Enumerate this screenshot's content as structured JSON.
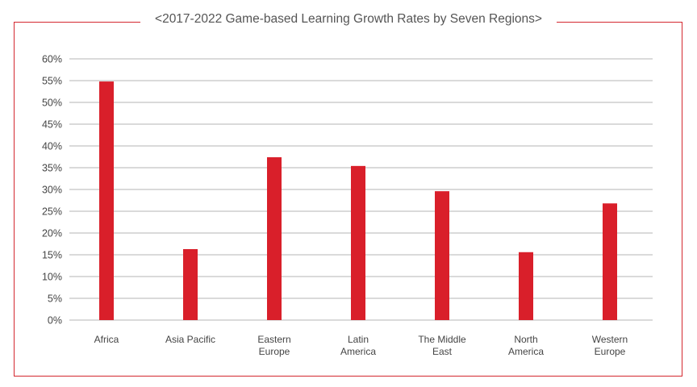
{
  "chart_data": {
    "type": "bar",
    "title": "<2017-2022 Game-based Learning Growth Rates by Seven Regions>",
    "categories": [
      [
        "Africa"
      ],
      [
        "Asia Pacific"
      ],
      [
        "Eastern",
        "Europe"
      ],
      [
        "Latin",
        "America"
      ],
      [
        "The Middle",
        "East"
      ],
      [
        "North",
        "America"
      ],
      [
        "Western",
        "Europe"
      ]
    ],
    "values": [
      54.8,
      16.3,
      37.4,
      35.4,
      29.6,
      15.6,
      26.8
    ],
    "ylim": [
      0,
      60
    ],
    "yticks": [
      0,
      5,
      10,
      15,
      20,
      25,
      30,
      35,
      40,
      45,
      50,
      55,
      60
    ],
    "ytick_labels": [
      "0%",
      "5%",
      "10%",
      "15%",
      "20%",
      "25%",
      "30%",
      "35%",
      "40%",
      "45%",
      "50%",
      "55%",
      "60%"
    ],
    "xlabel": "",
    "ylabel": "",
    "grid": true,
    "colors": {
      "bar": "#d91f2a",
      "grid": "#b5b5b5",
      "frame": "#d4282f"
    }
  }
}
